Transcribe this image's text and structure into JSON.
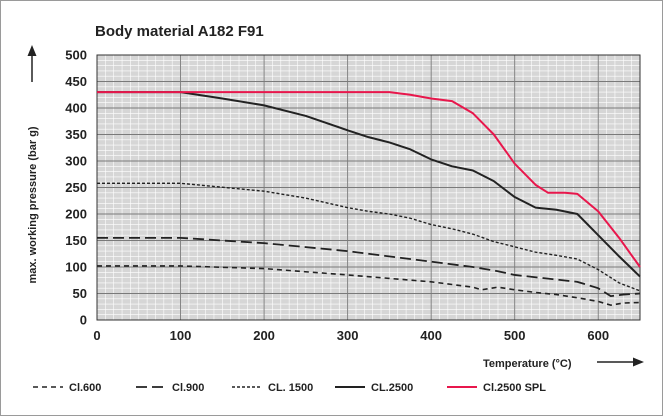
{
  "chart_data": {
    "type": "line",
    "title": "Body material A182 F91",
    "xlabel": "Temperature (°C)",
    "ylabel": "max. working pressure (bar g)",
    "xlim": [
      0,
      650
    ],
    "ylim": [
      0,
      500
    ],
    "x_ticks": [
      0,
      100,
      200,
      300,
      400,
      500,
      600
    ],
    "y_ticks": [
      0,
      50,
      100,
      150,
      200,
      250,
      300,
      350,
      400,
      450,
      500
    ],
    "grid": true,
    "grid_minor": true,
    "legend_position": "bottom",
    "series": [
      {
        "name": "Cl.600",
        "color": "#222222",
        "dash": "dashed-short",
        "points": [
          [
            0,
            102
          ],
          [
            100,
            102
          ],
          [
            200,
            97
          ],
          [
            300,
            85
          ],
          [
            400,
            72
          ],
          [
            420,
            68
          ],
          [
            450,
            62
          ],
          [
            460,
            57
          ],
          [
            480,
            62
          ],
          [
            500,
            57
          ],
          [
            525,
            52
          ],
          [
            550,
            48
          ],
          [
            575,
            42
          ],
          [
            600,
            35
          ],
          [
            615,
            28
          ],
          [
            630,
            32
          ],
          [
            650,
            33
          ]
        ]
      },
      {
        "name": "Cl.900",
        "color": "#222222",
        "dash": "dashed-long",
        "points": [
          [
            0,
            155
          ],
          [
            100,
            155
          ],
          [
            200,
            145
          ],
          [
            300,
            130
          ],
          [
            400,
            110
          ],
          [
            450,
            100
          ],
          [
            480,
            92
          ],
          [
            500,
            85
          ],
          [
            540,
            78
          ],
          [
            575,
            72
          ],
          [
            600,
            60
          ],
          [
            615,
            45
          ],
          [
            630,
            48
          ],
          [
            650,
            50
          ]
        ]
      },
      {
        "name": "CL. 1500",
        "color": "#222222",
        "dash": "dotted-fine",
        "points": [
          [
            0,
            258
          ],
          [
            100,
            258
          ],
          [
            200,
            243
          ],
          [
            250,
            230
          ],
          [
            300,
            212
          ],
          [
            325,
            205
          ],
          [
            350,
            200
          ],
          [
            375,
            192
          ],
          [
            400,
            180
          ],
          [
            425,
            172
          ],
          [
            450,
            162
          ],
          [
            475,
            148
          ],
          [
            500,
            138
          ],
          [
            525,
            128
          ],
          [
            550,
            122
          ],
          [
            575,
            115
          ],
          [
            600,
            95
          ],
          [
            625,
            70
          ],
          [
            650,
            55
          ]
        ]
      },
      {
        "name": "CL.2500",
        "color": "#222222",
        "dash": "solid",
        "points": [
          [
            0,
            430
          ],
          [
            100,
            430
          ],
          [
            150,
            418
          ],
          [
            200,
            405
          ],
          [
            250,
            385
          ],
          [
            300,
            358
          ],
          [
            325,
            345
          ],
          [
            350,
            335
          ],
          [
            375,
            322
          ],
          [
            400,
            303
          ],
          [
            425,
            290
          ],
          [
            450,
            282
          ],
          [
            475,
            262
          ],
          [
            500,
            232
          ],
          [
            525,
            212
          ],
          [
            550,
            208
          ],
          [
            575,
            200
          ],
          [
            600,
            160
          ],
          [
            625,
            120
          ],
          [
            650,
            82
          ]
        ]
      },
      {
        "name": "Cl.2500 SPL",
        "color": "#e8174c",
        "dash": "solid",
        "points": [
          [
            0,
            430
          ],
          [
            350,
            430
          ],
          [
            375,
            425
          ],
          [
            400,
            418
          ],
          [
            425,
            413
          ],
          [
            450,
            390
          ],
          [
            475,
            350
          ],
          [
            500,
            295
          ],
          [
            525,
            255
          ],
          [
            540,
            240
          ],
          [
            560,
            240
          ],
          [
            575,
            238
          ],
          [
            600,
            205
          ],
          [
            625,
            155
          ],
          [
            650,
            100
          ]
        ]
      }
    ]
  }
}
